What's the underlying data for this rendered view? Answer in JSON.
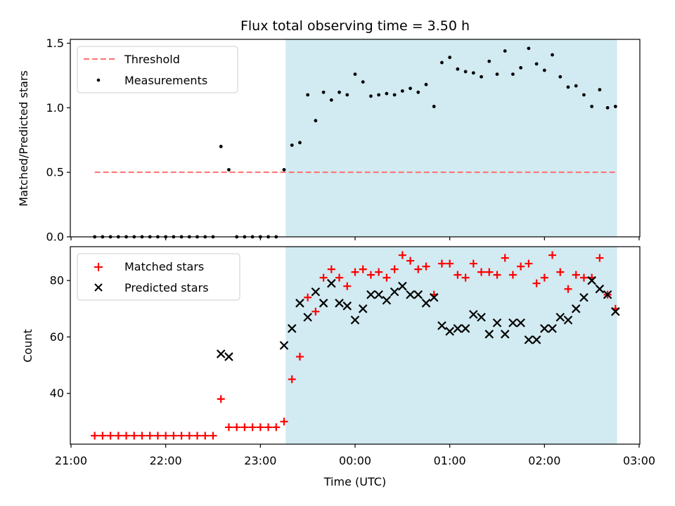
{
  "chart_data": [
    {
      "type": "scatter",
      "title": "Flux total observing time = 3.50 h",
      "xlabel": "",
      "ylabel": "Matched/Predicted stars",
      "ylim": [
        0,
        1.53
      ],
      "xlim": [
        "21:00",
        "03:00"
      ],
      "grid": false,
      "legend_position": "upper-left",
      "y_ticks": [
        "0.0",
        "0.5",
        "1.0",
        "1.5"
      ],
      "shaded_region": {
        "x_start": "23:16",
        "x_end": "02:46",
        "color": "#add8e6"
      },
      "threshold": {
        "name": "Threshold",
        "value": 0.5,
        "x_start": "21:15",
        "x_end": "02:46",
        "color": "#ff7070",
        "style": "dashed"
      },
      "series": [
        {
          "name": "Measurements",
          "marker": "dot",
          "color": "#000000",
          "points": [
            [
              "21:15",
              0
            ],
            [
              "21:20",
              0
            ],
            [
              "21:25",
              0
            ],
            [
              "21:30",
              0
            ],
            [
              "21:35",
              0
            ],
            [
              "21:40",
              0
            ],
            [
              "21:45",
              0
            ],
            [
              "21:50",
              0
            ],
            [
              "21:55",
              0
            ],
            [
              "22:00",
              0
            ],
            [
              "22:05",
              0
            ],
            [
              "22:10",
              0
            ],
            [
              "22:15",
              0
            ],
            [
              "22:20",
              0
            ],
            [
              "22:25",
              0
            ],
            [
              "22:30",
              0
            ],
            [
              "22:35",
              0.7
            ],
            [
              "22:40",
              0.52
            ],
            [
              "22:45",
              0
            ],
            [
              "22:50",
              0
            ],
            [
              "22:55",
              0
            ],
            [
              "23:00",
              0
            ],
            [
              "23:05",
              0
            ],
            [
              "23:10",
              0
            ],
            [
              "23:15",
              0.52
            ],
            [
              "23:20",
              0.71
            ],
            [
              "23:25",
              0.73
            ],
            [
              "23:30",
              1.1
            ],
            [
              "23:35",
              0.9
            ],
            [
              "23:40",
              1.12
            ],
            [
              "23:45",
              1.06
            ],
            [
              "23:50",
              1.12
            ],
            [
              "23:55",
              1.1
            ],
            [
              "00:00",
              1.26
            ],
            [
              "00:05",
              1.2
            ],
            [
              "00:10",
              1.09
            ],
            [
              "00:15",
              1.1
            ],
            [
              "00:20",
              1.11
            ],
            [
              "00:25",
              1.1
            ],
            [
              "00:30",
              1.13
            ],
            [
              "00:35",
              1.15
            ],
            [
              "00:40",
              1.12
            ],
            [
              "00:45",
              1.18
            ],
            [
              "00:50",
              1.01
            ],
            [
              "00:55",
              1.35
            ],
            [
              "01:00",
              1.39
            ],
            [
              "01:05",
              1.3
            ],
            [
              "01:10",
              1.28
            ],
            [
              "01:15",
              1.27
            ],
            [
              "01:20",
              1.24
            ],
            [
              "01:25",
              1.36
            ],
            [
              "01:30",
              1.26
            ],
            [
              "01:35",
              1.44
            ],
            [
              "01:40",
              1.26
            ],
            [
              "01:45",
              1.31
            ],
            [
              "01:50",
              1.46
            ],
            [
              "01:55",
              1.34
            ],
            [
              "02:00",
              1.29
            ],
            [
              "02:05",
              1.41
            ],
            [
              "02:10",
              1.24
            ],
            [
              "02:15",
              1.16
            ],
            [
              "02:20",
              1.17
            ],
            [
              "02:25",
              1.1
            ],
            [
              "02:30",
              1.01
            ],
            [
              "02:35",
              1.14
            ],
            [
              "02:40",
              1.0
            ],
            [
              "02:45",
              1.01
            ]
          ]
        }
      ]
    },
    {
      "type": "scatter",
      "title": "",
      "xlabel": "Time (UTC)",
      "ylabel": "Count",
      "ylim": [
        22,
        92
      ],
      "xlim": [
        "21:00",
        "03:00"
      ],
      "grid": false,
      "legend_position": "upper-left",
      "y_ticks": [
        "40",
        "60",
        "80"
      ],
      "x_ticks": [
        "21:00",
        "22:00",
        "23:00",
        "00:00",
        "01:00",
        "02:00",
        "03:00"
      ],
      "shaded_region": {
        "x_start": "23:16",
        "x_end": "02:46",
        "color": "#add8e6"
      },
      "series": [
        {
          "name": "Matched stars",
          "marker": "plus",
          "color": "#ff0000",
          "points": [
            [
              "21:15",
              25
            ],
            [
              "21:20",
              25
            ],
            [
              "21:25",
              25
            ],
            [
              "21:30",
              25
            ],
            [
              "21:35",
              25
            ],
            [
              "21:40",
              25
            ],
            [
              "21:45",
              25
            ],
            [
              "21:50",
              25
            ],
            [
              "21:55",
              25
            ],
            [
              "22:00",
              25
            ],
            [
              "22:05",
              25
            ],
            [
              "22:10",
              25
            ],
            [
              "22:15",
              25
            ],
            [
              "22:20",
              25
            ],
            [
              "22:25",
              25
            ],
            [
              "22:30",
              25
            ],
            [
              "22:35",
              38
            ],
            [
              "22:40",
              28
            ],
            [
              "22:45",
              28
            ],
            [
              "22:50",
              28
            ],
            [
              "22:55",
              28
            ],
            [
              "23:00",
              28
            ],
            [
              "23:05",
              28
            ],
            [
              "23:10",
              28
            ],
            [
              "23:15",
              30
            ],
            [
              "23:20",
              45
            ],
            [
              "23:25",
              53
            ],
            [
              "23:30",
              74
            ],
            [
              "23:35",
              69
            ],
            [
              "23:40",
              81
            ],
            [
              "23:45",
              84
            ],
            [
              "23:50",
              81
            ],
            [
              "23:55",
              78
            ],
            [
              "00:00",
              83
            ],
            [
              "00:05",
              84
            ],
            [
              "00:10",
              82
            ],
            [
              "00:15",
              83
            ],
            [
              "00:20",
              81
            ],
            [
              "00:25",
              84
            ],
            [
              "00:30",
              89
            ],
            [
              "00:35",
              87
            ],
            [
              "00:40",
              84
            ],
            [
              "00:45",
              85
            ],
            [
              "00:50",
              75
            ],
            [
              "00:55",
              86
            ],
            [
              "01:00",
              86
            ],
            [
              "01:05",
              82
            ],
            [
              "01:10",
              81
            ],
            [
              "01:15",
              86
            ],
            [
              "01:20",
              83
            ],
            [
              "01:25",
              83
            ],
            [
              "01:30",
              82
            ],
            [
              "01:35",
              88
            ],
            [
              "01:40",
              82
            ],
            [
              "01:45",
              85
            ],
            [
              "01:50",
              86
            ],
            [
              "01:55",
              79
            ],
            [
              "02:00",
              81
            ],
            [
              "02:05",
              89
            ],
            [
              "02:10",
              83
            ],
            [
              "02:15",
              77
            ],
            [
              "02:20",
              82
            ],
            [
              "02:25",
              81
            ],
            [
              "02:30",
              81
            ],
            [
              "02:35",
              88
            ],
            [
              "02:40",
              75
            ],
            [
              "02:45",
              70
            ]
          ]
        },
        {
          "name": "Predicted stars",
          "marker": "x",
          "color": "#000000",
          "points": [
            [
              "22:35",
              54
            ],
            [
              "22:40",
              53
            ],
            [
              "23:15",
              57
            ],
            [
              "23:20",
              63
            ],
            [
              "23:25",
              72
            ],
            [
              "23:30",
              67
            ],
            [
              "23:35",
              76
            ],
            [
              "23:40",
              72
            ],
            [
              "23:45",
              79
            ],
            [
              "23:50",
              72
            ],
            [
              "23:55",
              71
            ],
            [
              "00:00",
              66
            ],
            [
              "00:05",
              70
            ],
            [
              "00:10",
              75
            ],
            [
              "00:15",
              75
            ],
            [
              "00:20",
              73
            ],
            [
              "00:25",
              76
            ],
            [
              "00:30",
              78
            ],
            [
              "00:35",
              75
            ],
            [
              "00:40",
              75
            ],
            [
              "00:45",
              72
            ],
            [
              "00:50",
              74
            ],
            [
              "00:55",
              64
            ],
            [
              "01:00",
              62
            ],
            [
              "01:05",
              63
            ],
            [
              "01:10",
              63
            ],
            [
              "01:15",
              68
            ],
            [
              "01:20",
              67
            ],
            [
              "01:25",
              61
            ],
            [
              "01:30",
              65
            ],
            [
              "01:35",
              61
            ],
            [
              "01:40",
              65
            ],
            [
              "01:45",
              65
            ],
            [
              "01:50",
              59
            ],
            [
              "01:55",
              59
            ],
            [
              "02:00",
              63
            ],
            [
              "02:05",
              63
            ],
            [
              "02:10",
              67
            ],
            [
              "02:15",
              66
            ],
            [
              "02:20",
              70
            ],
            [
              "02:25",
              74
            ],
            [
              "02:30",
              80
            ],
            [
              "02:35",
              77
            ],
            [
              "02:40",
              75
            ],
            [
              "02:45",
              69
            ]
          ]
        }
      ]
    }
  ]
}
